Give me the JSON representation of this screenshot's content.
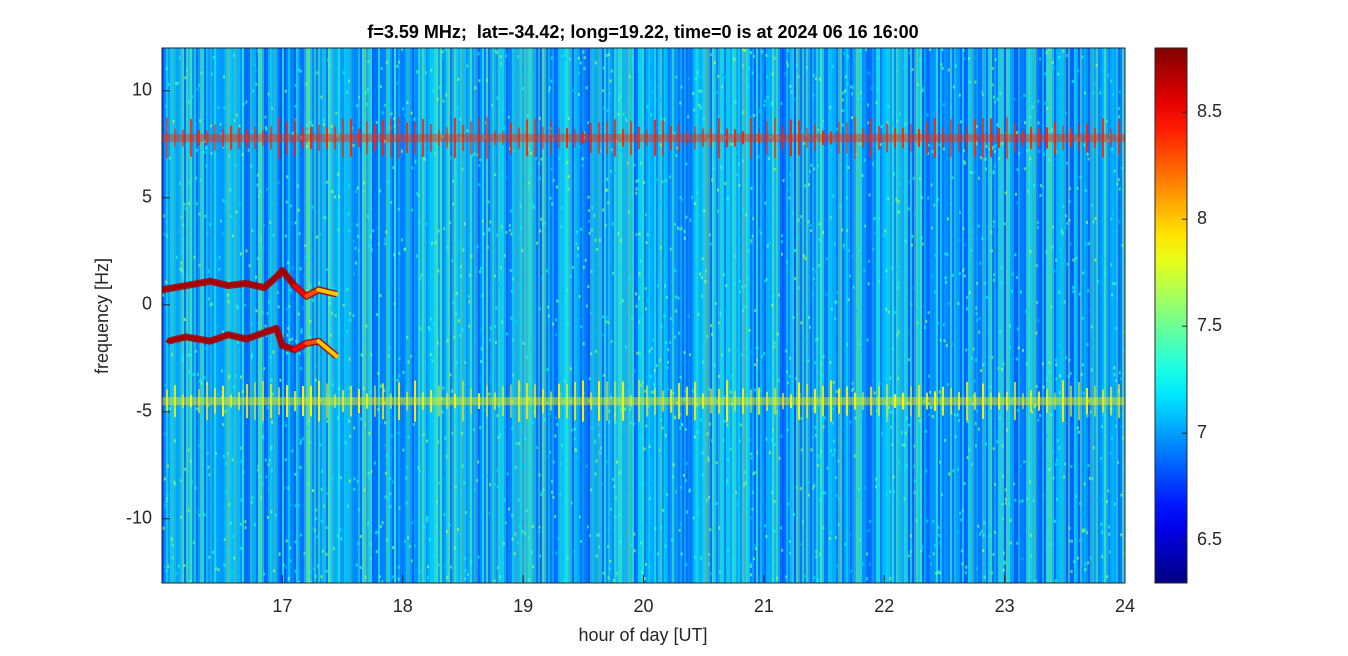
{
  "chart_data": {
    "type": "spectrogram",
    "title": "f=3.59 MHz;  lat=-34.42; long=19.22, time=0 is at 2024 06 16 16:00",
    "xlabel": "hour of day [UT]",
    "ylabel": "frequency [Hz]",
    "xlim": [
      16,
      24
    ],
    "xticks": [
      17,
      18,
      19,
      20,
      21,
      22,
      23,
      24
    ],
    "ylim": [
      -13,
      12
    ],
    "yticks": [
      -10,
      -5,
      0,
      5,
      10
    ],
    "colormap": "jet",
    "clim": [
      6.3,
      8.8
    ],
    "cticks": [
      6.5,
      7,
      7.5,
      8,
      8.5
    ],
    "background_value": 6.9,
    "bands": [
      {
        "y": 7.8,
        "value": 8.4
      },
      {
        "y": -4.5,
        "value": 7.9
      }
    ],
    "traces": [
      {
        "x": [
          16.0,
          16.2,
          16.4,
          16.55,
          16.7,
          16.85,
          16.95,
          17.0,
          17.1,
          17.2,
          17.3,
          17.45
        ],
        "y": [
          0.7,
          0.9,
          1.1,
          0.9,
          1.0,
          0.8,
          1.3,
          1.6,
          0.9,
          0.4,
          0.7,
          0.5
        ],
        "values": [
          8.7,
          8.7,
          8.7,
          8.7,
          8.7,
          8.7,
          8.7,
          8.7,
          8.5,
          8.3,
          8.0,
          7.6
        ]
      },
      {
        "x": [
          16.05,
          16.2,
          16.4,
          16.55,
          16.7,
          16.85,
          16.95,
          17.0,
          17.1,
          17.2,
          17.3,
          17.45
        ],
        "y": [
          -1.7,
          -1.5,
          -1.7,
          -1.4,
          -1.6,
          -1.3,
          -1.1,
          -1.9,
          -2.1,
          -1.8,
          -1.7,
          -2.4
        ],
        "values": [
          8.7,
          8.7,
          8.7,
          8.7,
          8.7,
          8.7,
          8.7,
          8.7,
          8.5,
          8.3,
          8.0,
          7.6
        ]
      }
    ]
  }
}
